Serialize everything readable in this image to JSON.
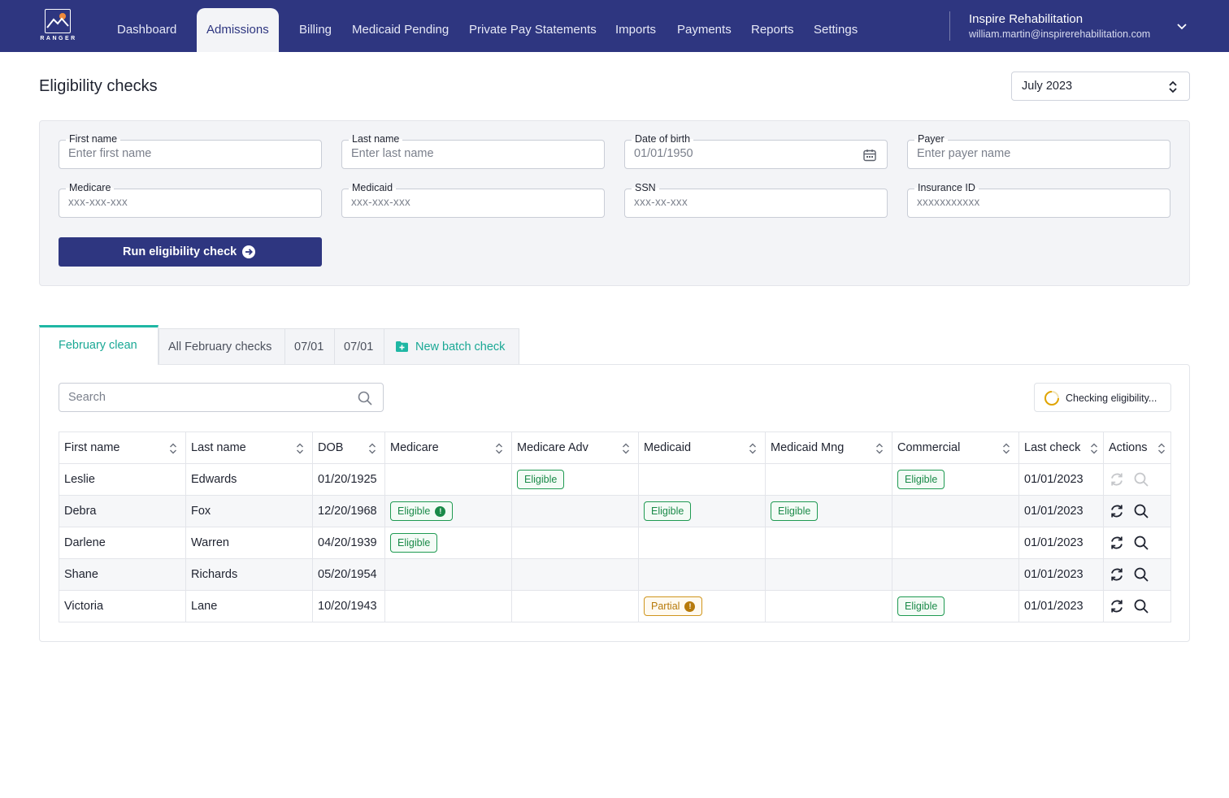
{
  "nav": {
    "logo_text": "RANGER",
    "items": [
      "Dashboard",
      "Admissions",
      "Billing",
      "Medicaid Pending",
      "Private Pay Statements",
      "Imports",
      "Payments",
      "Reports",
      "Settings"
    ],
    "active": "Admissions",
    "org_name": "Inspire Rehabilitation",
    "user_email": "william.martin@inspirerehabilitation.com"
  },
  "header": {
    "title": "Eligibility checks",
    "month": "July 2023"
  },
  "form": {
    "first_name": {
      "label": "First name",
      "placeholder": "Enter first name"
    },
    "last_name": {
      "label": "Last name",
      "placeholder": "Enter last name"
    },
    "dob": {
      "label": "Date of birth",
      "placeholder": "01/01/1950"
    },
    "payer": {
      "label": "Payer",
      "placeholder": "Enter payer name"
    },
    "medicare": {
      "label": "Medicare",
      "placeholder": "xxx-xxx-xxx"
    },
    "medicaid": {
      "label": "Medicaid",
      "placeholder": "xxx-xxx-xxx"
    },
    "ssn": {
      "label": "SSN",
      "placeholder": "xxx-xx-xxx"
    },
    "insurance_id": {
      "label": "Insurance ID",
      "placeholder": "xxxxxxxxxxx"
    },
    "run_button": "Run eligibility check"
  },
  "tabs": {
    "items": [
      "February clean",
      "All February checks",
      "07/01",
      "07/01"
    ],
    "active": "February clean",
    "new_batch": "New batch check"
  },
  "table": {
    "search_placeholder": "Search",
    "status": "Checking eligibility...",
    "columns": [
      "First name",
      "Last name",
      "DOB",
      "Medicare",
      "Medicare Adv",
      "Medicaid",
      "Medicaid Mng",
      "Commercial",
      "Last check",
      "Actions"
    ],
    "rows": [
      {
        "first": "Leslie",
        "last": "Edwards",
        "dob": "01/20/1925",
        "medicare": "",
        "medicare_adv": "Eligible",
        "medicaid": "",
        "medicaid_mng": "",
        "commercial": "Eligible",
        "last_check": "01/01/2023",
        "actions_disabled": true
      },
      {
        "first": "Debra",
        "last": "Fox",
        "dob": "12/20/1968",
        "medicare": "Eligible",
        "medicare_alert": true,
        "medicare_adv": "",
        "medicaid": "Eligible",
        "medicaid_mng": "Eligible",
        "commercial": "",
        "last_check": "01/01/2023",
        "actions_disabled": false
      },
      {
        "first": "Darlene",
        "last": "Warren",
        "dob": "04/20/1939",
        "medicare": "Eligible",
        "medicare_adv": "",
        "medicaid": "",
        "medicaid_mng": "",
        "commercial": "",
        "last_check": "01/01/2023",
        "actions_disabled": false
      },
      {
        "first": "Shane",
        "last": "Richards",
        "dob": "05/20/1954",
        "medicare": "",
        "medicare_adv": "",
        "medicaid": "",
        "medicaid_mng": "",
        "commercial": "",
        "last_check": "01/01/2023",
        "actions_disabled": false
      },
      {
        "first": "Victoria",
        "last": "Lane",
        "dob": "10/20/1943",
        "medicare": "",
        "medicare_adv": "",
        "medicaid": "Partial",
        "medicaid_alert": true,
        "medicaid_mng": "",
        "commercial": "Eligible",
        "last_check": "01/01/2023",
        "actions_disabled": false
      }
    ]
  },
  "colors": {
    "brand": "#2e3680",
    "accent": "#1fb7a4",
    "eligible": "#1a8a48",
    "partial": "#b77a0a"
  }
}
